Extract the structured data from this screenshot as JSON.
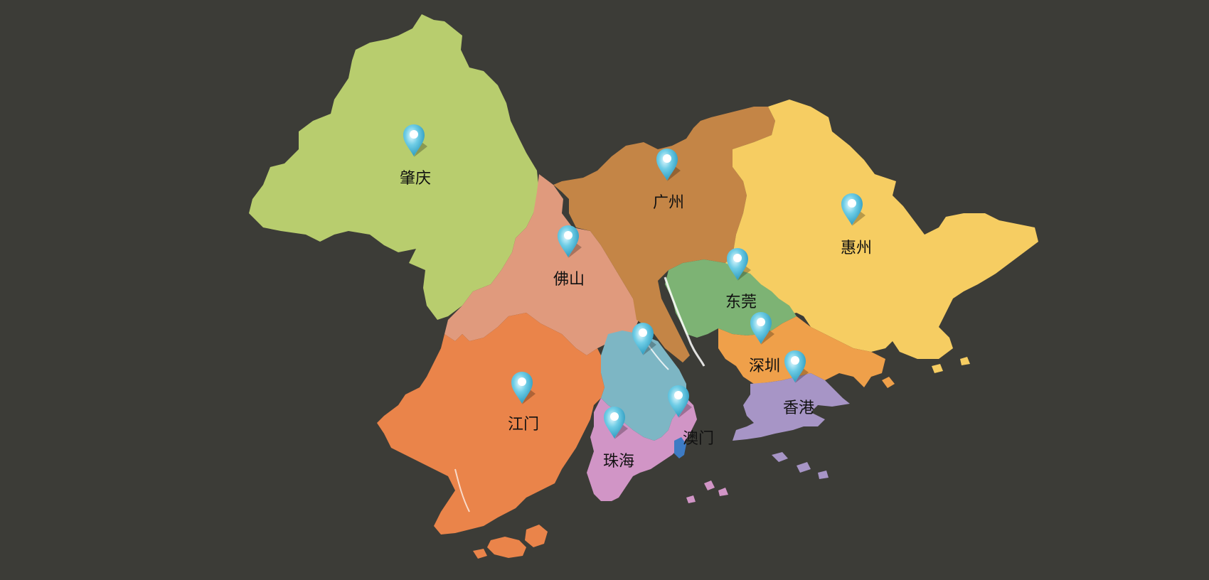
{
  "colors": {
    "background": "#3c3c37",
    "zhaoqing": "#b8cd6e",
    "foshan": "#e09a7d",
    "guangzhou": "#c48546",
    "huizhou": "#f6cd62",
    "dongguan": "#7db374",
    "shenzhen": "#efa04a",
    "jiangmen": "#ea844a",
    "zhongshan": "#7db6c4",
    "zhuhai": "#d195c6",
    "macau": "#3d7bc4",
    "hongkong": "#a795c6",
    "pin": "#6fcde6"
  },
  "cities": [
    {
      "id": "zhaoqing",
      "name": "肇庆"
    },
    {
      "id": "guangzhou",
      "name": "广州"
    },
    {
      "id": "huizhou",
      "name": "惠州"
    },
    {
      "id": "foshan",
      "name": "佛山"
    },
    {
      "id": "dongguan",
      "name": "东莞"
    },
    {
      "id": "shenzhen",
      "name": "深圳"
    },
    {
      "id": "zhongshan",
      "name": ""
    },
    {
      "id": "hongkong",
      "name": "香港"
    },
    {
      "id": "jiangmen",
      "name": "江门"
    },
    {
      "id": "macau",
      "name": "澳门"
    },
    {
      "id": "zhuhai",
      "name": "珠海"
    }
  ],
  "icons": {
    "pin": "map-pin-icon"
  }
}
